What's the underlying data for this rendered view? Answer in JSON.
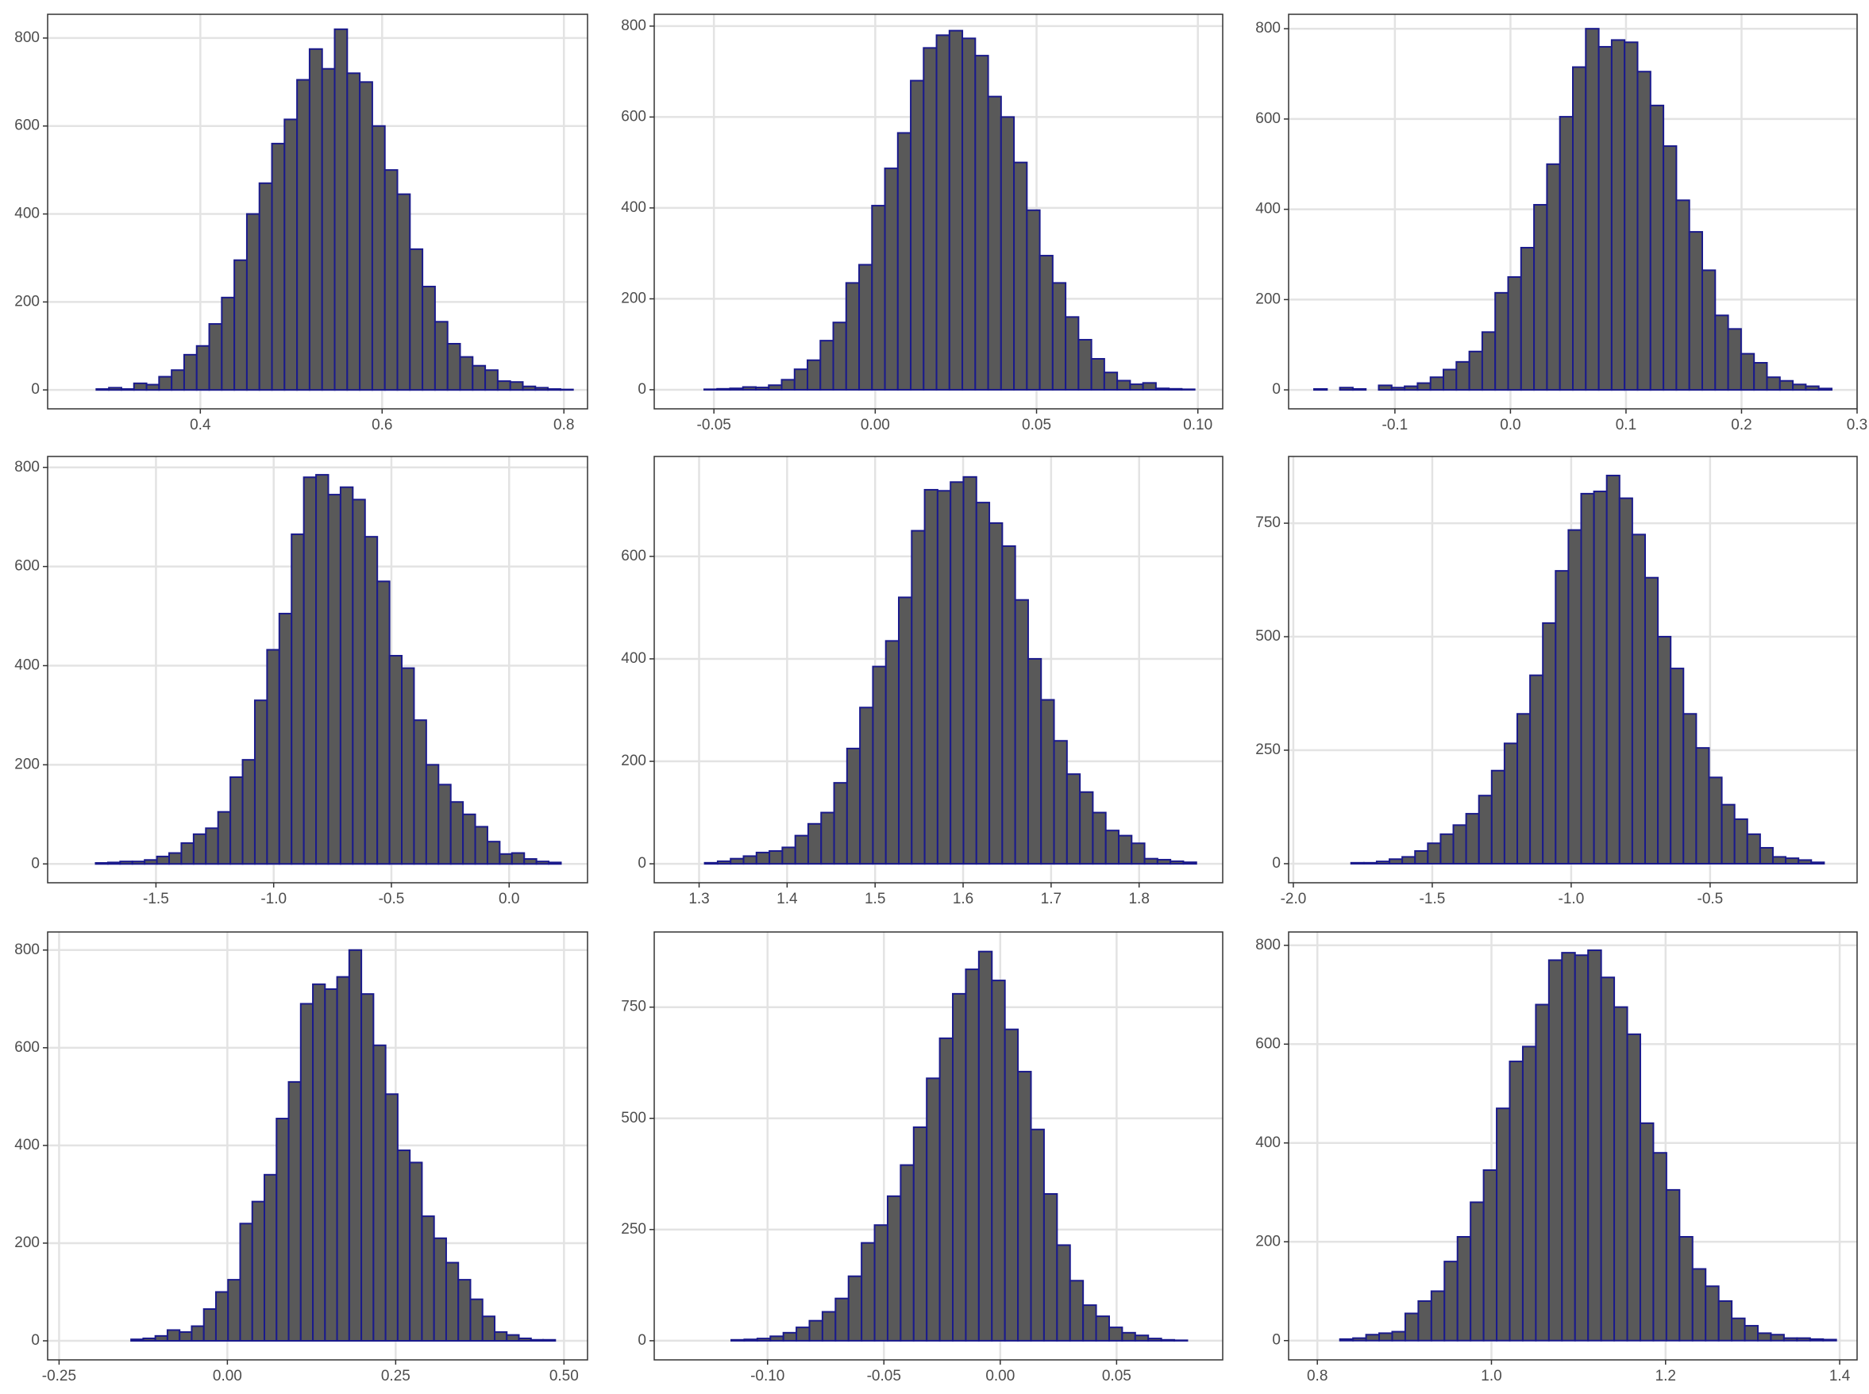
{
  "chart_data": [
    {
      "type": "histogram",
      "color": "#595959",
      "edgecolor": "#1a1a8c",
      "grid": true,
      "bins": [
        0.258,
        0.2718,
        0.2856,
        0.2994,
        0.3132,
        0.327,
        0.3408,
        0.3546,
        0.3684,
        0.3822,
        0.396,
        0.4098,
        0.4236,
        0.4374,
        0.4512,
        0.465,
        0.4788,
        0.4926,
        0.5064,
        0.5202,
        0.534,
        0.5478,
        0.5616,
        0.5754,
        0.5892,
        0.603,
        0.6168,
        0.6306,
        0.6444,
        0.6582,
        0.672,
        0.6858,
        0.6996,
        0.7134,
        0.7272,
        0.741,
        0.7548,
        0.7686,
        0.7824,
        0.7962,
        0.81
      ],
      "values": [
        0,
        0,
        2,
        5,
        2,
        15,
        12,
        30,
        45,
        80,
        100,
        150,
        210,
        295,
        400,
        470,
        560,
        615,
        705,
        775,
        730,
        820,
        720,
        700,
        600,
        500,
        445,
        320,
        235,
        155,
        105,
        75,
        55,
        45,
        20,
        18,
        8,
        5,
        2,
        1
      ],
      "xlim": [
        0.232,
        0.826
      ],
      "xticks": [
        0.4,
        0.6,
        0.8
      ],
      "ylim": [
        -43,
        854
      ],
      "yticks": [
        0,
        200,
        400,
        600,
        800
      ]
    },
    {
      "type": "histogram",
      "color": "#595959",
      "edgecolor": "#1a1a8c",
      "grid": true,
      "bins": [
        -0.061,
        -0.057,
        -0.053,
        -0.049,
        -0.045,
        -0.041,
        -0.037,
        -0.033,
        -0.029,
        -0.025,
        -0.021,
        -0.017,
        -0.013,
        -0.009,
        -0.005,
        -0.001,
        0.003,
        0.007,
        0.011,
        0.015,
        0.019,
        0.023,
        0.027,
        0.031,
        0.035,
        0.039,
        0.043,
        0.047,
        0.051,
        0.055,
        0.059,
        0.063,
        0.067,
        0.071,
        0.075,
        0.079,
        0.083,
        0.087,
        0.091,
        0.095,
        0.099
      ],
      "values": [
        0,
        0,
        1,
        2,
        3,
        6,
        5,
        10,
        22,
        45,
        65,
        108,
        148,
        235,
        275,
        405,
        487,
        565,
        680,
        752,
        780,
        790,
        773,
        735,
        645,
        600,
        500,
        395,
        295,
        235,
        160,
        110,
        68,
        38,
        20,
        12,
        15,
        3,
        2,
        1
      ],
      "xlim": [
        -0.0685,
        0.1077
      ],
      "xticks": [
        -0.05,
        {
          "value": 0,
          "label": "0.00"
        },
        0.05,
        {
          "value": 0.1,
          "label": "0.10"
        }
      ],
      "ylim": [
        -42,
        826
      ],
      "yticks": [
        0,
        200,
        400,
        600,
        800
      ]
    },
    {
      "type": "histogram",
      "color": "#595959",
      "edgecolor": "#1a1a8c",
      "grid": true,
      "bins": [
        -0.17,
        -0.1588,
        -0.1476,
        -0.1364,
        -0.1252,
        -0.114,
        -0.1028,
        -0.0916,
        -0.0804,
        -0.0692,
        -0.058,
        -0.0468,
        -0.0356,
        -0.0244,
        -0.0132,
        -0.002,
        0.0092,
        0.0204,
        0.0316,
        0.0428,
        0.054,
        0.0652,
        0.0764,
        0.0876,
        0.0988,
        0.11,
        0.1212,
        0.1324,
        0.1436,
        0.1548,
        0.166,
        0.1772,
        0.1884,
        0.1996,
        0.2108,
        0.222,
        0.2332,
        0.2444,
        0.2556,
        0.2668,
        0.278
      ],
      "values": [
        2,
        0,
        5,
        2,
        0,
        10,
        5,
        8,
        15,
        28,
        45,
        62,
        85,
        128,
        215,
        250,
        315,
        410,
        500,
        605,
        715,
        800,
        760,
        775,
        770,
        705,
        630,
        540,
        420,
        350,
        265,
        165,
        135,
        80,
        60,
        28,
        20,
        12,
        8,
        3
      ],
      "xlim": [
        -0.192,
        0.3
      ],
      "xticks": [
        -0.1,
        {
          "value": 0,
          "label": "0.0"
        },
        0.1,
        0.2,
        0.3
      ],
      "ylim": [
        -42,
        832
      ],
      "yticks": [
        0,
        200,
        400,
        600,
        800
      ]
    },
    {
      "type": "histogram",
      "color": "#595959",
      "edgecolor": "#1a1a8c",
      "grid": true,
      "bins": [
        -1.86,
        -1.808,
        -1.756,
        -1.704,
        -1.652,
        -1.6,
        -1.548,
        -1.496,
        -1.444,
        -1.392,
        -1.34,
        -1.288,
        -1.236,
        -1.184,
        -1.132,
        -1.08,
        -1.028,
        -0.976,
        -0.924,
        -0.872,
        -0.82,
        -0.768,
        -0.716,
        -0.664,
        -0.612,
        -0.56,
        -0.508,
        -0.456,
        -0.404,
        -0.352,
        -0.3,
        -0.248,
        -0.196,
        -0.144,
        -0.092,
        -0.04,
        0.012,
        0.064,
        0.116,
        0.168,
        0.22
      ],
      "values": [
        0,
        0,
        2,
        3,
        5,
        5,
        8,
        15,
        22,
        42,
        60,
        72,
        105,
        175,
        210,
        330,
        432,
        505,
        665,
        780,
        785,
        745,
        760,
        735,
        660,
        570,
        420,
        395,
        290,
        200,
        160,
        125,
        100,
        75,
        45,
        20,
        22,
        10,
        5,
        3
      ],
      "xlim": [
        -1.96,
        0.333
      ],
      "xticks": [
        -1.5,
        {
          "value": -1,
          "label": "-1.0"
        },
        -0.5,
        {
          "value": 0,
          "label": "0.0"
        }
      ],
      "ylim": [
        -38,
        822
      ],
      "yticks": [
        0,
        200,
        400,
        600,
        800
      ]
    },
    {
      "type": "histogram",
      "color": "#595959",
      "edgecolor": "#1a1a8c",
      "grid": true,
      "bins": [
        1.277,
        1.2917,
        1.3064,
        1.3211,
        1.3358,
        1.3505,
        1.3652,
        1.3799,
        1.3946,
        1.4093,
        1.424,
        1.4387,
        1.4534,
        1.4681,
        1.4828,
        1.4975,
        1.5122,
        1.5269,
        1.5416,
        1.5563,
        1.571,
        1.5857,
        1.6004,
        1.6151,
        1.6298,
        1.6445,
        1.6592,
        1.6739,
        1.6886,
        1.7033,
        1.718,
        1.7327,
        1.7474,
        1.7621,
        1.7768,
        1.7915,
        1.8062,
        1.8209,
        1.8356,
        1.8503,
        1.865
      ],
      "values": [
        0,
        0,
        2,
        5,
        10,
        15,
        22,
        25,
        32,
        55,
        78,
        100,
        158,
        225,
        305,
        385,
        435,
        520,
        650,
        730,
        728,
        745,
        755,
        705,
        665,
        620,
        515,
        400,
        320,
        240,
        175,
        140,
        100,
        65,
        55,
        40,
        10,
        8,
        5,
        3
      ],
      "xlim": [
        1.249,
        1.895
      ],
      "xticks": [
        1.3,
        1.4,
        1.5,
        1.6,
        1.7,
        1.8
      ],
      "ylim": [
        -37,
        795
      ],
      "yticks": [
        0,
        200,
        400,
        600
      ]
    },
    {
      "type": "histogram",
      "color": "#595959",
      "edgecolor": "#1a1a8c",
      "grid": true,
      "bins": [
        -1.93,
        -1.884,
        -1.838,
        -1.792,
        -1.746,
        -1.7,
        -1.654,
        -1.608,
        -1.562,
        -1.516,
        -1.47,
        -1.424,
        -1.378,
        -1.332,
        -1.286,
        -1.24,
        -1.194,
        -1.148,
        -1.102,
        -1.056,
        -1.01,
        -0.964,
        -0.918,
        -0.872,
        -0.826,
        -0.78,
        -0.734,
        -0.688,
        -0.642,
        -0.596,
        -0.55,
        -0.504,
        -0.458,
        -0.412,
        -0.366,
        -0.32,
        -0.274,
        -0.228,
        -0.182,
        -0.136,
        -0.09
      ],
      "values": [
        0,
        0,
        0,
        2,
        2,
        5,
        10,
        15,
        28,
        45,
        65,
        85,
        110,
        150,
        205,
        265,
        330,
        415,
        530,
        645,
        735,
        815,
        820,
        855,
        805,
        725,
        630,
        500,
        430,
        330,
        255,
        190,
        130,
        98,
        65,
        35,
        15,
        12,
        8,
        3
      ],
      "xlim": [
        -2.017,
        0.029
      ],
      "xticks": [
        {
          "value": -2,
          "label": "-2.0"
        },
        -1.5,
        {
          "value": -1,
          "label": "-1.0"
        },
        -0.5
      ],
      "ylim": [
        -42,
        897
      ],
      "yticks": [
        0,
        250,
        500,
        750
      ]
    },
    {
      "type": "histogram",
      "color": "#595959",
      "edgecolor": "#1a1a8c",
      "grid": true,
      "bins": [
        -0.233,
        -0.215,
        -0.197,
        -0.179,
        -0.161,
        -0.143,
        -0.125,
        -0.107,
        -0.089,
        -0.071,
        -0.053,
        -0.035,
        -0.017,
        0.001,
        0.019,
        0.037,
        0.055,
        0.073,
        0.091,
        0.109,
        0.127,
        0.145,
        0.163,
        0.181,
        0.199,
        0.217,
        0.235,
        0.253,
        0.271,
        0.289,
        0.307,
        0.325,
        0.343,
        0.361,
        0.379,
        0.397,
        0.415,
        0.433,
        0.451,
        0.469,
        0.487
      ],
      "values": [
        0,
        0,
        0,
        0,
        0,
        3,
        5,
        10,
        22,
        18,
        30,
        65,
        100,
        125,
        240,
        285,
        340,
        455,
        530,
        690,
        730,
        720,
        745,
        800,
        710,
        605,
        505,
        390,
        365,
        255,
        210,
        160,
        125,
        85,
        50,
        18,
        12,
        5,
        2,
        2
      ],
      "xlim": [
        -0.267,
        0.535
      ],
      "xticks": [
        -0.25,
        {
          "value": 0,
          "label": "0.00"
        },
        0.25,
        {
          "value": 0.5,
          "label": "0.50"
        }
      ],
      "ylim": [
        -39,
        837
      ],
      "yticks": [
        0,
        200,
        400,
        600,
        800
      ]
    },
    {
      "type": "histogram",
      "color": "#595959",
      "edgecolor": "#1a1a8c",
      "grid": true,
      "bins": [
        -0.138,
        -0.1324,
        -0.1268,
        -0.1212,
        -0.1156,
        -0.11,
        -0.1044,
        -0.0988,
        -0.0932,
        -0.0876,
        -0.082,
        -0.0764,
        -0.0708,
        -0.0652,
        -0.0596,
        -0.054,
        -0.0484,
        -0.0428,
        -0.0372,
        -0.0316,
        -0.026,
        -0.0204,
        -0.0148,
        -0.0092,
        -0.0036,
        0.002,
        0.0076,
        0.0132,
        0.0188,
        0.0244,
        0.03,
        0.0356,
        0.0412,
        0.0468,
        0.0524,
        0.058,
        0.0636,
        0.0692,
        0.0748,
        0.0804,
        0.086
      ],
      "values": [
        0,
        0,
        0,
        0,
        2,
        3,
        5,
        10,
        18,
        30,
        45,
        65,
        95,
        145,
        220,
        260,
        325,
        395,
        480,
        590,
        680,
        780,
        835,
        875,
        810,
        700,
        605,
        475,
        330,
        215,
        135,
        80,
        55,
        30,
        18,
        12,
        5,
        2,
        1,
        0
      ],
      "xlim": [
        -0.1487,
        0.0956
      ],
      "xticks": [
        {
          "value": -0.1,
          "label": "-0.10"
        },
        -0.05,
        {
          "value": 0,
          "label": "0.00"
        },
        0.05
      ],
      "ylim": [
        -43,
        919
      ],
      "yticks": [
        0,
        250,
        500,
        750
      ]
    },
    {
      "type": "histogram",
      "color": "#595959",
      "edgecolor": "#1a1a8c",
      "grid": true,
      "bins": [
        0.796,
        0.811,
        0.826,
        0.841,
        0.856,
        0.871,
        0.886,
        0.901,
        0.916,
        0.931,
        0.946,
        0.961,
        0.976,
        0.991,
        1.006,
        1.021,
        1.036,
        1.051,
        1.066,
        1.081,
        1.096,
        1.111,
        1.126,
        1.141,
        1.156,
        1.171,
        1.186,
        1.201,
        1.216,
        1.231,
        1.246,
        1.261,
        1.276,
        1.291,
        1.306,
        1.321,
        1.336,
        1.351,
        1.366,
        1.381,
        1.396
      ],
      "values": [
        0,
        0,
        3,
        5,
        12,
        15,
        18,
        55,
        80,
        100,
        160,
        210,
        280,
        345,
        470,
        565,
        595,
        680,
        770,
        785,
        780,
        790,
        735,
        675,
        620,
        440,
        380,
        305,
        210,
        145,
        110,
        80,
        45,
        30,
        15,
        12,
        5,
        5,
        3,
        2
      ],
      "xlim": [
        0.767,
        1.42
      ],
      "xticks": [
        0.8,
        {
          "value": 1,
          "label": "1.0"
        },
        1.2,
        1.4
      ],
      "ylim": [
        -39,
        827
      ],
      "yticks": [
        0,
        200,
        400,
        600,
        800
      ]
    }
  ]
}
